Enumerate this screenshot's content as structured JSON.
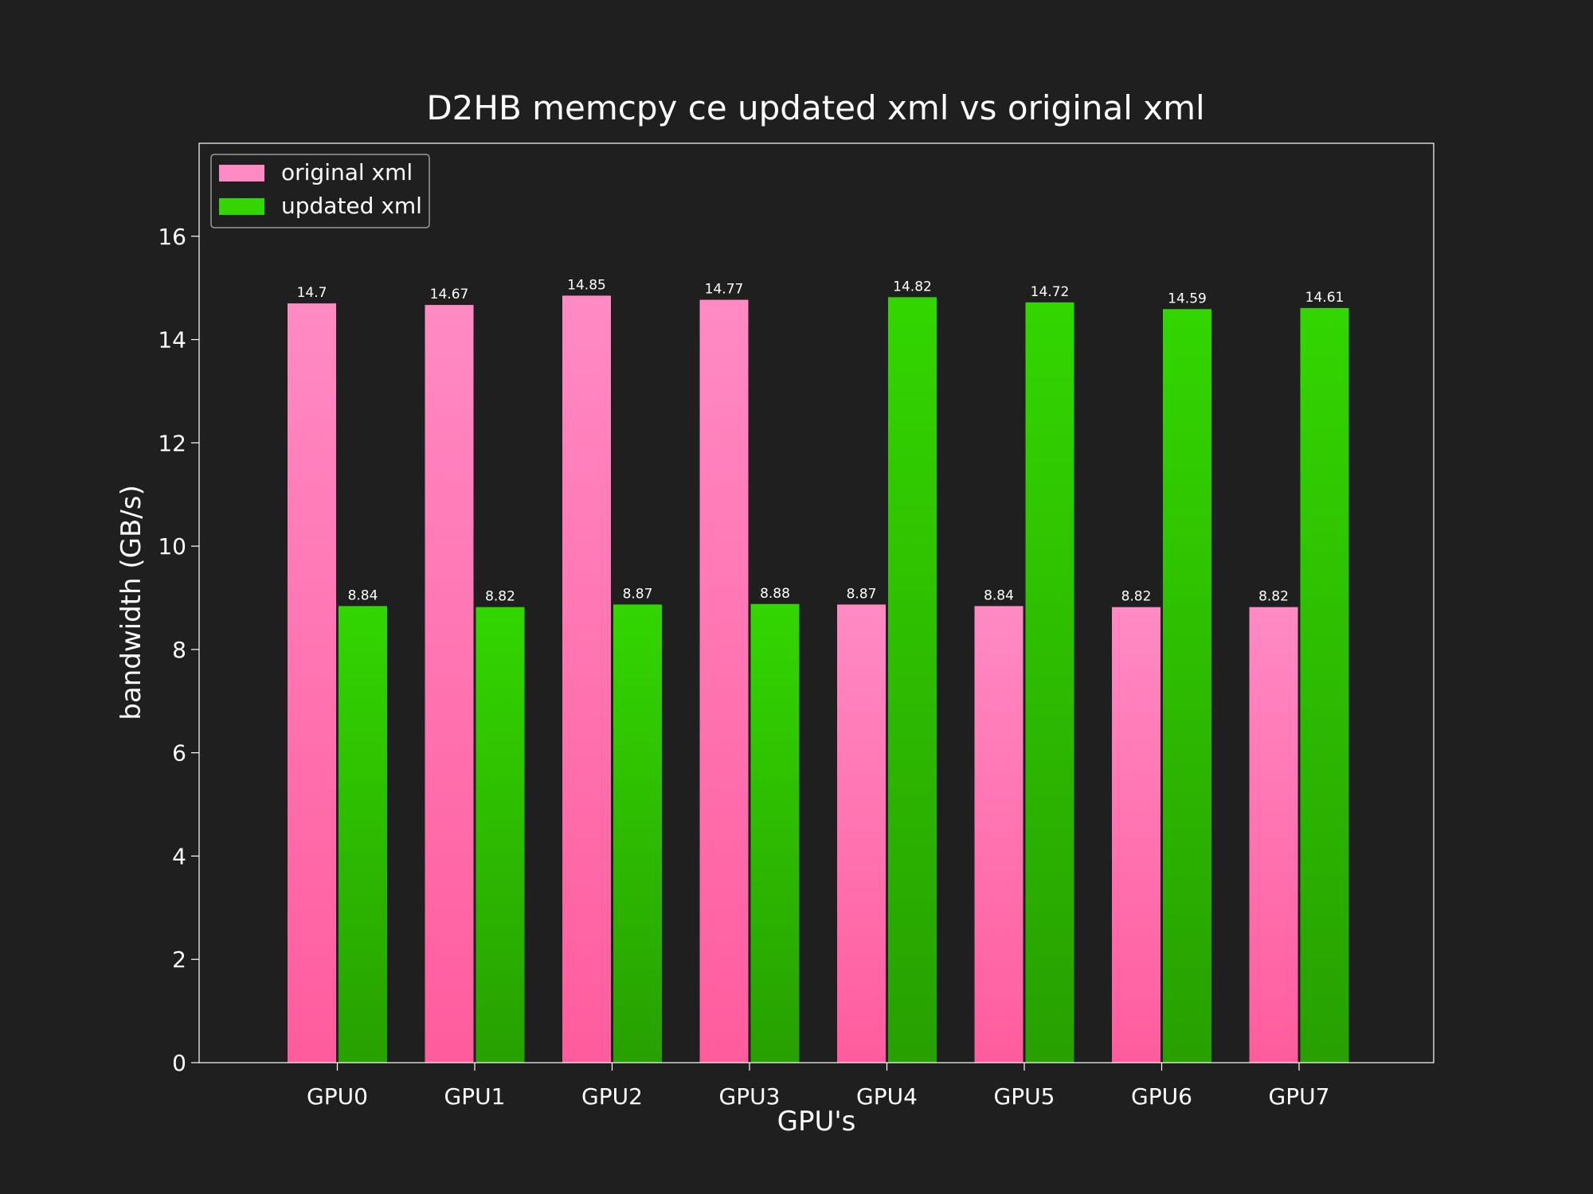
{
  "chart_data": {
    "type": "bar",
    "title": "D2HB memcpy ce updated xml vs original xml",
    "xlabel": "GPU's",
    "ylabel": "bandwidth (GB/s)",
    "categories": [
      "GPU0",
      "GPU1",
      "GPU2",
      "GPU3",
      "GPU4",
      "GPU5",
      "GPU6",
      "GPU7"
    ],
    "series": [
      {
        "name": "original xml",
        "color": "#ff8ac4",
        "values": [
          14.7,
          14.67,
          14.85,
          14.77,
          8.87,
          8.84,
          8.82,
          8.82
        ]
      },
      {
        "name": "updated xml",
        "color": "#33d600",
        "values": [
          8.84,
          8.82,
          8.87,
          8.88,
          14.82,
          14.72,
          14.59,
          14.61
        ]
      }
    ],
    "ylim": [
      0,
      17.8
    ],
    "yticks": [
      0,
      2,
      4,
      6,
      8,
      10,
      12,
      14,
      16
    ],
    "legend_position": "top-left",
    "grid": false,
    "background_color": "#1f1f1f"
  }
}
